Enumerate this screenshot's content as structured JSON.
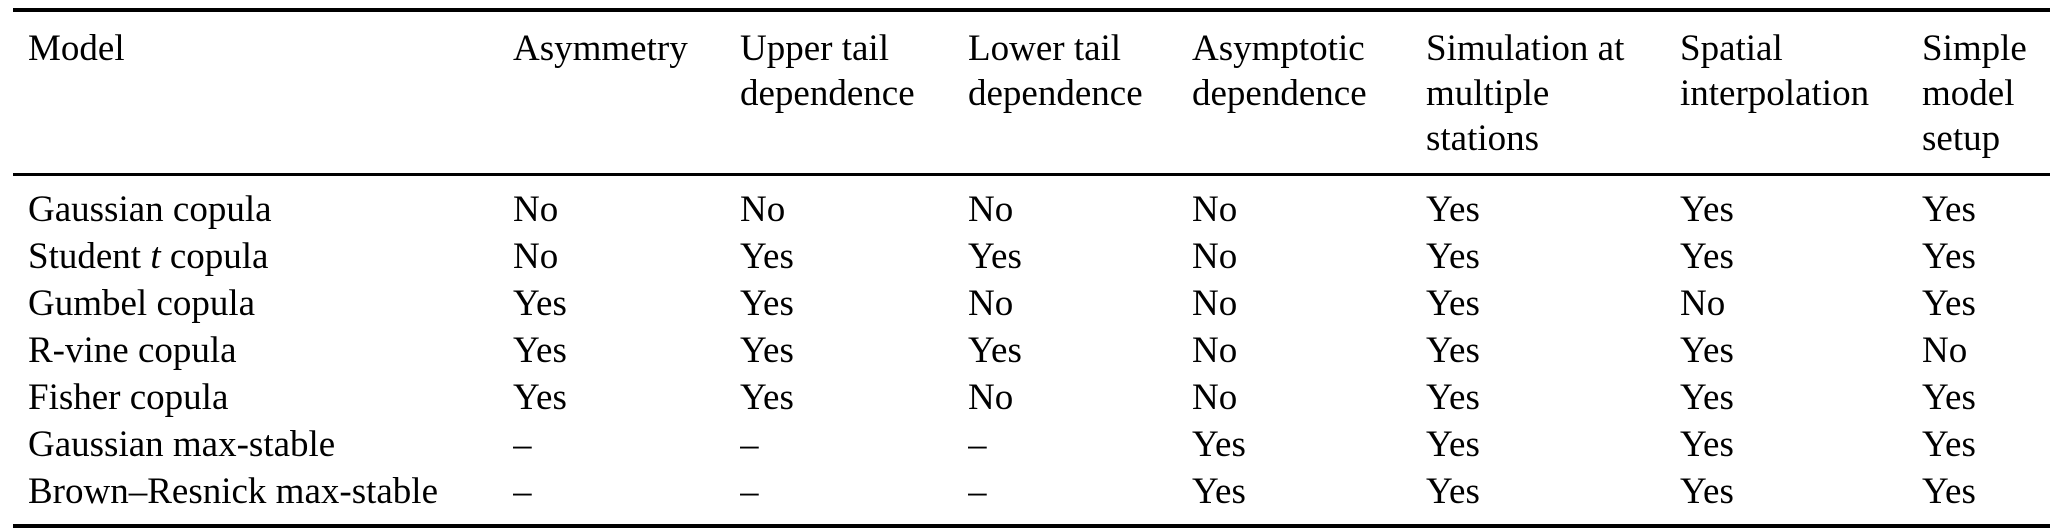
{
  "colors": {
    "background": "#ffffff",
    "text": "#000000",
    "rules": "#000000"
  },
  "table": {
    "columns": [
      "Model",
      "Asymmetry",
      "Upper tail\ndependence",
      "Lower tail\ndependence",
      "Asymptotic\ndependence",
      "Simulation at\nmultiple\nstations",
      "Spatial\ninterpolation",
      "Simple\nmodel\nsetup"
    ],
    "rows": [
      {
        "model": "Gaussian copula",
        "model_parts": [
          {
            "text": "Gaussian copula",
            "italic": false
          }
        ],
        "values": [
          "No",
          "No",
          "No",
          "No",
          "Yes",
          "Yes",
          "Yes"
        ]
      },
      {
        "model": "Student t copula",
        "model_parts": [
          {
            "text": "Student ",
            "italic": false
          },
          {
            "text": "t",
            "italic": true
          },
          {
            "text": " copula",
            "italic": false
          }
        ],
        "values": [
          "No",
          "Yes",
          "Yes",
          "No",
          "Yes",
          "Yes",
          "Yes"
        ]
      },
      {
        "model": "Gumbel copula",
        "model_parts": [
          {
            "text": "Gumbel copula",
            "italic": false
          }
        ],
        "values": [
          "Yes",
          "Yes",
          "No",
          "No",
          "Yes",
          "No",
          "Yes"
        ]
      },
      {
        "model": "R-vine copula",
        "model_parts": [
          {
            "text": "R-vine copula",
            "italic": false
          }
        ],
        "values": [
          "Yes",
          "Yes",
          "Yes",
          "No",
          "Yes",
          "Yes",
          "No"
        ]
      },
      {
        "model": "Fisher copula",
        "model_parts": [
          {
            "text": "Fisher copula",
            "italic": false
          }
        ],
        "values": [
          "Yes",
          "Yes",
          "No",
          "No",
          "Yes",
          "Yes",
          "Yes"
        ]
      },
      {
        "model": "Gaussian max-stable",
        "model_parts": [
          {
            "text": "Gaussian max-stable",
            "italic": false
          }
        ],
        "values": [
          "–",
          "–",
          "–",
          "Yes",
          "Yes",
          "Yes",
          "Yes"
        ]
      },
      {
        "model": "Brown–Resnick max-stable",
        "model_parts": [
          {
            "text": "Brown–Resnick max-stable",
            "italic": false
          }
        ],
        "values": [
          "–",
          "–",
          "–",
          "Yes",
          "Yes",
          "Yes",
          "Yes"
        ]
      }
    ]
  }
}
